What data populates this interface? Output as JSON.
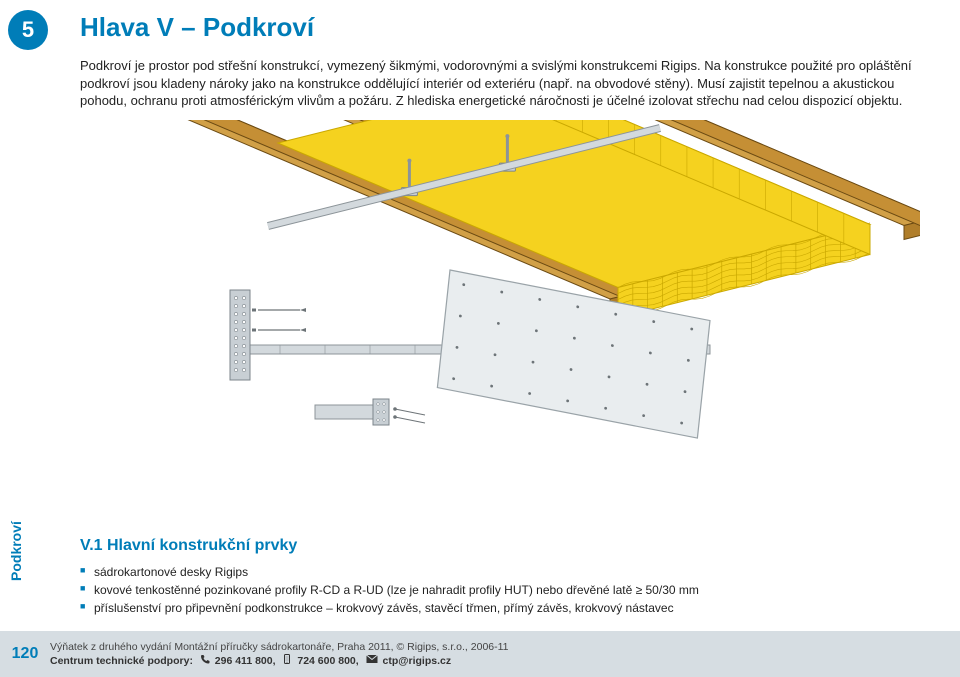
{
  "chapter_badge": "5",
  "title": "Hlava V – Podkroví",
  "intro": "Podkroví je prostor pod střešní konstrukcí, vymezený šikmými, vodorovnými a svislými konstrukcemi Rigips. Na konstrukce použité pro opláštění podkroví jsou kladeny nároky jako na konstrukce oddělující interiér od exteriéru (např. na obvodové stěny). Musí zajistit tepelnou a akustickou pohodu, ochranu proti atmosférickým vlivům a požáru. Z hlediska energetické náročnosti je účelné izolovat střechu nad celou dispozicí objektu.",
  "sidebar_label": "Podkroví",
  "section": {
    "title": "V.1 Hlavní konstrukční prvky",
    "items": [
      "sádrokartonové desky Rigips",
      "kovové tenkostěnné pozinkované profily R-CD a R-UD (lze je nahradit profily HUT) nebo dřevěné latě ≥ 50/30 mm",
      "příslušenství pro připevnění podkonstrukce – krokvový závěs, stavěcí třmen, přímý závěs, krokvový nástavec"
    ]
  },
  "footer": {
    "page": "120",
    "line1": "Výňatek z druhého vydání Montážní příručky sádrokartonáře, Praha 2011, © Rigips, s.r.o., 2006-11",
    "line2_prefix": "Centrum technické podpory:",
    "phone1": "296 411 800,",
    "phone2": "724 600 800,",
    "email": "ctp@rigips.cz"
  },
  "diagram": {
    "colors": {
      "rafter_top": "#d1a047",
      "rafter_side": "#b07e2a",
      "rafter_end": "#c58f35",
      "rafter_stroke": "#6b4a12",
      "insul_fill": "#f5d21f",
      "insul_stroke": "#caa800",
      "metal_fill": "#d3d9dd",
      "metal_stroke": "#8c9499",
      "board_fill": "#e9edef",
      "board_stroke": "#9aa3a8",
      "bracket_fill": "#c8cfd4",
      "bracket_stroke": "#7c858b",
      "screw": "#6d7478"
    }
  }
}
